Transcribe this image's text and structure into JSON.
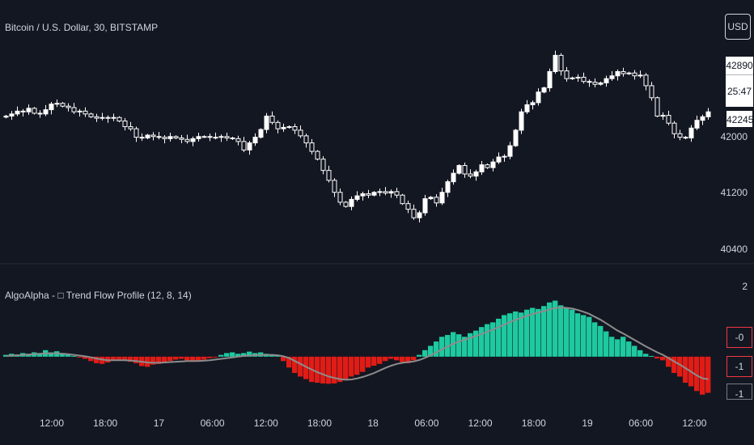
{
  "main_title": "Bitcoin / U.S. Dollar, 30, BITSTAMP",
  "indicator_title": "AlgoAlpha - □ Trend Flow Profile  (12, 8, 14)",
  "currency_button": "USD",
  "price_tags": {
    "price": "42890",
    "timer": "25:47",
    "last": "42245"
  },
  "indicator_tags": [
    "-0",
    "-1",
    "-1"
  ],
  "colors": {
    "background": "#131722",
    "candle_up": "#ffffff",
    "candle_down": "#ffffff",
    "bull_hist": "#1ec9a0",
    "bear_hist": "#e01c16",
    "signal_line": "#8c8c8c",
    "text": "#d1d4dc"
  },
  "chart_data": [
    {
      "type": "candlestick",
      "title": "Bitcoin / U.S. Dollar, 30, BITSTAMP",
      "ylim": [
        40300,
        43600
      ],
      "y_ticks": [
        "40400",
        "41200",
        "42000"
      ],
      "x_ticks": [
        "12:00",
        "18:00",
        "17",
        "06:00",
        "12:00",
        "18:00",
        "18",
        "06:00",
        "12:00",
        "18:00",
        "19",
        "06:00",
        "12:00"
      ],
      "close": [
        42300,
        42330,
        42370,
        42360,
        42410,
        42340,
        42330,
        42390,
        42470,
        42480,
        42440,
        42420,
        42360,
        42370,
        42330,
        42290,
        42270,
        42280,
        42270,
        42280,
        42230,
        42150,
        42120,
        42000,
        41990,
        42030,
        42010,
        42000,
        41980,
        42010,
        41990,
        41970,
        41940,
        41980,
        42010,
        42010,
        42000,
        42000,
        42010,
        41990,
        41980,
        41940,
        41820,
        41920,
        42000,
        42110,
        42300,
        42210,
        42120,
        42140,
        42150,
        42100,
        42020,
        41920,
        41800,
        41690,
        41530,
        41390,
        41220,
        41080,
        41020,
        41120,
        41170,
        41200,
        41180,
        41220,
        41230,
        41210,
        41230,
        41180,
        41060,
        40980,
        40860,
        40930,
        41130,
        41150,
        41070,
        41220,
        41370,
        41490,
        41600,
        41480,
        41450,
        41510,
        41610,
        41570,
        41650,
        41720,
        41730,
        41880,
        42100,
        42360,
        42460,
        42490,
        42640,
        42700,
        42930,
        43160,
        42940,
        42830,
        42840,
        42850,
        42790,
        42780,
        42750,
        42770,
        42830,
        42870,
        42930,
        42900,
        42910,
        42870,
        42880,
        42730,
        42560,
        42300,
        42310,
        42200,
        42050,
        42000,
        41990,
        42130,
        42240,
        42290,
        42360
      ]
    },
    {
      "type": "bar",
      "title": "AlgoAlpha - □ Trend Flow Profile  (12, 8, 14)",
      "ylim": [
        -1.1,
        2.1
      ],
      "y_ticks": [
        "2",
        "-0",
        "-1",
        "-1"
      ],
      "series": [
        {
          "name": "histogram",
          "values": [
            0.05,
            0.08,
            0.06,
            0.1,
            0.08,
            0.12,
            0.1,
            0.18,
            0.12,
            0.15,
            0.1,
            0.06,
            0.02,
            -0.02,
            -0.06,
            -0.12,
            -0.18,
            -0.2,
            -0.16,
            -0.1,
            -0.08,
            -0.1,
            -0.14,
            -0.18,
            -0.26,
            -0.28,
            -0.22,
            -0.2,
            -0.18,
            -0.12,
            -0.08,
            -0.06,
            -0.1,
            -0.14,
            -0.12,
            -0.08,
            -0.04,
            -0.02,
            0.05,
            0.1,
            0.12,
            0.08,
            0.1,
            0.14,
            0.1,
            0.12,
            0.08,
            0.06,
            0.04,
            -0.12,
            -0.3,
            -0.45,
            -0.55,
            -0.62,
            -0.7,
            -0.72,
            -0.74,
            -0.75,
            -0.74,
            -0.7,
            -0.62,
            -0.55,
            -0.5,
            -0.42,
            -0.3,
            -0.25,
            -0.2,
            -0.12,
            -0.06,
            -0.1,
            -0.15,
            -0.18,
            -0.1,
            0.05,
            0.18,
            0.3,
            0.42,
            0.55,
            0.6,
            0.68,
            0.62,
            0.55,
            0.65,
            0.72,
            0.82,
            0.9,
            0.95,
            1.05,
            1.15,
            1.2,
            1.25,
            1.22,
            1.3,
            1.35,
            1.32,
            1.4,
            1.5,
            1.55,
            1.42,
            1.35,
            1.3,
            1.2,
            1.15,
            1.1,
            0.95,
            0.85,
            0.7,
            0.55,
            0.48,
            0.55,
            0.42,
            0.3,
            0.18,
            0.08,
            0.02,
            -0.05,
            -0.1,
            -0.28,
            -0.45,
            -0.55,
            -0.72,
            -0.82,
            -0.95,
            -1.05,
            -1.0
          ]
        },
        {
          "name": "signal",
          "values": [
            0.02,
            0.03,
            0.04,
            0.05,
            0.06,
            0.07,
            0.08,
            0.09,
            0.09,
            0.09,
            0.08,
            0.07,
            0.05,
            0.03,
            0.01,
            -0.02,
            -0.05,
            -0.08,
            -0.1,
            -0.1,
            -0.1,
            -0.1,
            -0.11,
            -0.12,
            -0.14,
            -0.16,
            -0.17,
            -0.17,
            -0.16,
            -0.15,
            -0.14,
            -0.13,
            -0.12,
            -0.12,
            -0.12,
            -0.11,
            -0.1,
            -0.08,
            -0.06,
            -0.04,
            -0.02,
            0.0,
            0.02,
            0.03,
            0.04,
            0.05,
            0.05,
            0.05,
            0.04,
            0.01,
            -0.04,
            -0.12,
            -0.2,
            -0.28,
            -0.36,
            -0.43,
            -0.49,
            -0.55,
            -0.59,
            -0.62,
            -0.64,
            -0.63,
            -0.6,
            -0.56,
            -0.51,
            -0.45,
            -0.38,
            -0.31,
            -0.25,
            -0.2,
            -0.17,
            -0.15,
            -0.13,
            -0.09,
            -0.03,
            0.04,
            0.12,
            0.2,
            0.28,
            0.36,
            0.42,
            0.47,
            0.52,
            0.57,
            0.63,
            0.69,
            0.75,
            0.82,
            0.89,
            0.96,
            1.02,
            1.08,
            1.13,
            1.18,
            1.22,
            1.26,
            1.31,
            1.35,
            1.36,
            1.35,
            1.33,
            1.29,
            1.24,
            1.18,
            1.1,
            1.02,
            0.92,
            0.82,
            0.72,
            0.64,
            0.55,
            0.46,
            0.37,
            0.28,
            0.2,
            0.12,
            0.05,
            -0.04,
            -0.13,
            -0.22,
            -0.32,
            -0.42,
            -0.52,
            -0.6,
            -0.62
          ]
        }
      ]
    }
  ]
}
